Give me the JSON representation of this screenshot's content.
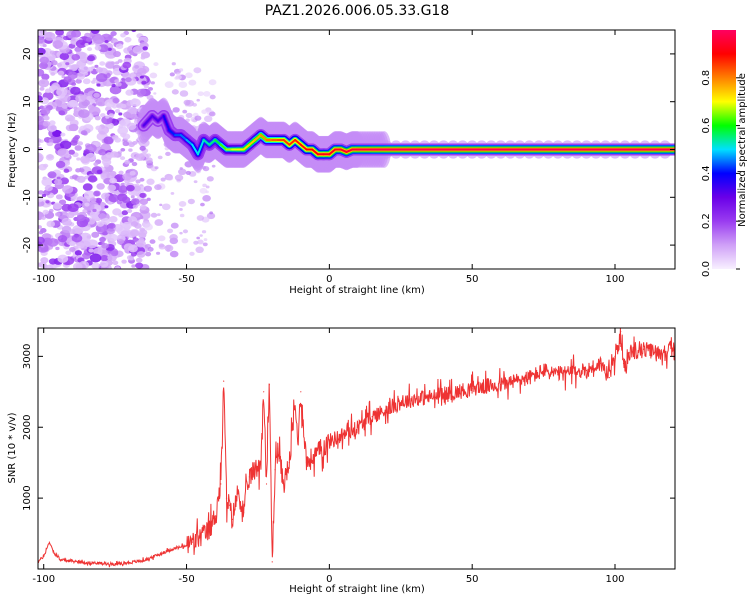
{
  "page_title": "PAZ1.2026.006.05.33.G18",
  "chart_data": [
    {
      "type": "heatmap",
      "xlabel": "Height of straight line (km)",
      "ylabel": "Frequency (Hz)",
      "xlim": [
        -102,
        121
      ],
      "ylim": [
        -25,
        25
      ],
      "xticks": [
        -100,
        -50,
        0,
        50,
        100
      ],
      "yticks": [
        -20,
        -10,
        0,
        10,
        20
      ],
      "xtick_labels": [
        "-100",
        "-50",
        "0",
        "50",
        "100"
      ],
      "ytick_labels": [
        "-20",
        "-10",
        "0",
        "10",
        "20"
      ],
      "colorbar": {
        "label": "Normalized spectral amplitude",
        "range": [
          0,
          1
        ],
        "ticks": [
          0.0,
          0.2,
          0.4,
          0.6,
          0.8
        ],
        "tick_labels": [
          "0.0",
          "0.2",
          "0.4",
          "0.6",
          "0.8"
        ],
        "colormap": [
          "#f8f0ff",
          "#cfa0f7",
          "#9a3cf0",
          "#6a00e8",
          "#0000ff",
          "#00e0ff",
          "#00ff00",
          "#ffff00",
          "#ff8000",
          "#ff0000",
          "#ff0060"
        ]
      },
      "ridge": {
        "height": [
          -65,
          -62,
          -60,
          -58,
          -56,
          -54,
          -52,
          -50,
          -48,
          -46,
          -44,
          -42,
          -40,
          -38,
          -36,
          -34,
          -32,
          -30,
          -28,
          -26,
          -24,
          -22,
          -20,
          -18,
          -16,
          -14,
          -12,
          -10,
          -8,
          -6,
          -4,
          -2,
          0,
          2,
          4,
          6,
          8,
          10,
          15,
          20,
          40,
          60,
          80,
          100,
          121
        ],
        "frequency": [
          5,
          7,
          6,
          7,
          4,
          3,
          3,
          2,
          1,
          -1,
          2,
          1,
          2,
          1,
          0,
          0,
          0,
          0,
          1,
          2,
          3,
          2,
          2,
          2,
          2,
          1,
          2,
          1,
          0,
          0,
          -1,
          -1,
          -1,
          0,
          0,
          -0.5,
          0,
          0,
          0,
          0,
          0,
          0,
          0,
          0,
          0
        ],
        "amplitude": [
          0.3,
          0.35,
          0.3,
          0.35,
          0.4,
          0.42,
          0.45,
          0.45,
          0.5,
          0.5,
          0.52,
          0.55,
          0.55,
          0.6,
          0.65,
          0.68,
          0.7,
          0.72,
          0.74,
          0.75,
          0.78,
          0.8,
          0.82,
          0.84,
          0.85,
          0.86,
          0.87,
          0.88,
          0.9,
          0.9,
          0.92,
          0.92,
          0.93,
          0.93,
          0.94,
          0.95,
          0.95,
          0.96,
          0.97,
          0.98,
          0.98,
          0.98,
          0.98,
          0.98,
          0.98
        ]
      }
    },
    {
      "type": "line",
      "xlabel": "Height of straight line (km)",
      "ylabel": "SNR (10 * v/v)",
      "xlim": [
        -102,
        121
      ],
      "ylim": [
        0,
        3400
      ],
      "xticks": [
        -100,
        -50,
        0,
        50,
        100
      ],
      "yticks": [
        1000,
        2000,
        3000
      ],
      "xtick_labels": [
        "-100",
        "-50",
        "0",
        "50",
        "100"
      ],
      "ytick_labels": [
        "1000",
        "2000",
        "3000"
      ],
      "color": "#ee3333",
      "series": [
        {
          "name": "SNR",
          "x": [
            -102,
            -100,
            -98,
            -96,
            -94,
            -90,
            -85,
            -80,
            -75,
            -70,
            -65,
            -60,
            -55,
            -50,
            -48,
            -45,
            -42,
            -40,
            -38,
            -37,
            -36,
            -35,
            -34,
            -32,
            -30,
            -28,
            -26,
            -24,
            -23,
            -22,
            -21,
            -20,
            -19,
            -18,
            -16,
            -14,
            -12,
            -11,
            -10,
            -8,
            -5,
            0,
            5,
            10,
            15,
            20,
            25,
            30,
            40,
            50,
            60,
            70,
            75,
            80,
            90,
            95,
            98,
            100,
            101,
            102,
            103,
            104,
            105,
            110,
            115,
            121
          ],
          "y": [
            100,
            180,
            380,
            200,
            130,
            110,
            90,
            80,
            70,
            90,
            120,
            200,
            280,
            330,
            380,
            450,
            550,
            750,
            1200,
            2650,
            1000,
            900,
            700,
            1100,
            800,
            1300,
            1400,
            1500,
            2500,
            1200,
            2600,
            100,
            1400,
            1700,
            1200,
            1500,
            2300,
            1800,
            2500,
            1500,
            1600,
            1800,
            1900,
            2000,
            2150,
            2250,
            2350,
            2400,
            2450,
            2550,
            2600,
            2700,
            2800,
            2750,
            2800,
            2900,
            2700,
            3000,
            3100,
            3350,
            2900,
            2800,
            3050,
            3100,
            3050,
            3100
          ]
        }
      ]
    }
  ]
}
